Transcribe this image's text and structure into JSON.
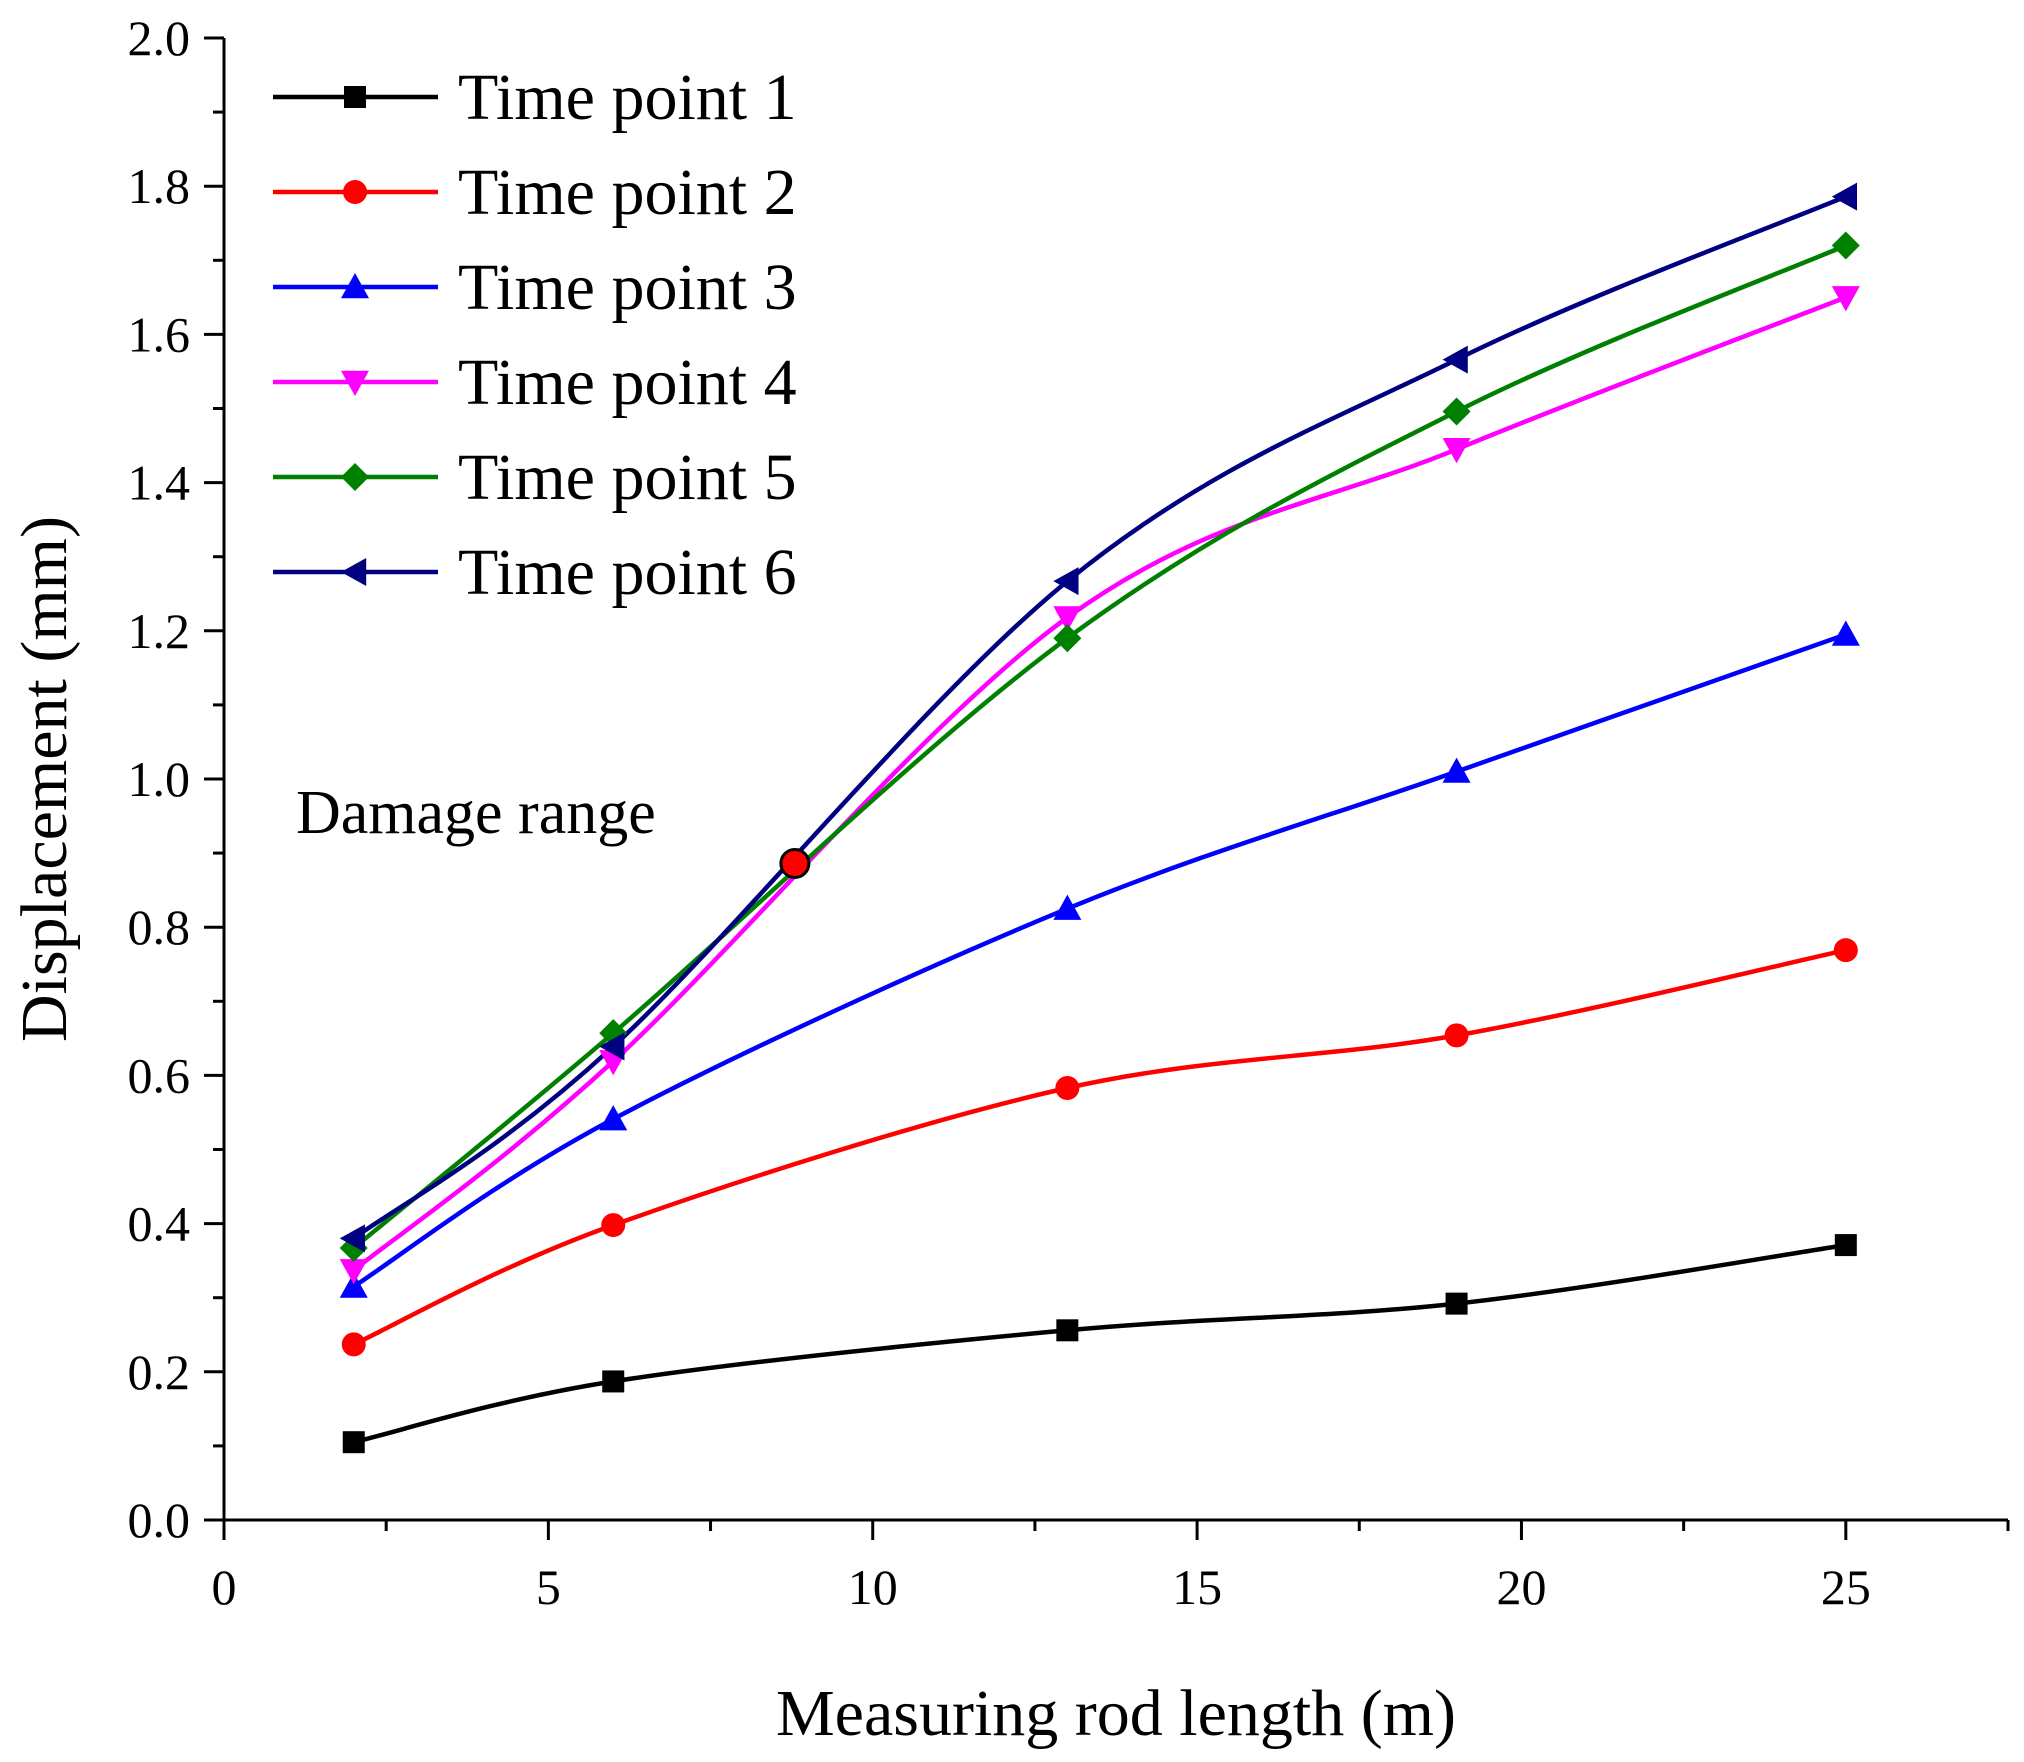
{
  "chart_data": {
    "type": "line",
    "title": "",
    "xlabel": "Measuring rod length (m)",
    "ylabel": "Displacement (mm)",
    "xlim": [
      0,
      27.5
    ],
    "ylim": [
      0,
      2.0
    ],
    "xticks": [
      0,
      5,
      10,
      15,
      20,
      25
    ],
    "xtick_labels": [
      "0",
      "5",
      "10",
      "15",
      "20",
      "25"
    ],
    "yticks": [
      0.0,
      0.2,
      0.4,
      0.6,
      0.8,
      1.0,
      1.2,
      1.4,
      1.6,
      1.8,
      2.0
    ],
    "ytick_labels": [
      "0.0",
      "0.2",
      "0.4",
      "0.6",
      "0.8",
      "1.0",
      "1.2",
      "1.4",
      "1.6",
      "1.8",
      "2.0"
    ],
    "grid": false,
    "legend_position": "top-left",
    "x": [
      2,
      6,
      13,
      19,
      25
    ],
    "series": [
      {
        "name": "Time point 1",
        "color": "#000000",
        "marker": "square",
        "values": [
          0.105,
          0.187,
          0.256,
          0.292,
          0.371
        ]
      },
      {
        "name": "Time point 2",
        "color": "#ff0000",
        "marker": "circle",
        "values": [
          0.237,
          0.398,
          0.583,
          0.654,
          0.769
        ]
      },
      {
        "name": "Time point 3",
        "color": "#0000ff",
        "marker": "triangle-up",
        "values": [
          0.315,
          0.541,
          0.825,
          1.01,
          1.195
        ]
      },
      {
        "name": "Time point 4",
        "color": "#ff00ff",
        "marker": "triangle-down",
        "values": [
          0.337,
          0.619,
          1.218,
          1.445,
          1.65
        ]
      },
      {
        "name": "Time point 5",
        "color": "#008000",
        "marker": "diamond",
        "values": [
          0.367,
          0.657,
          1.19,
          1.496,
          1.72
        ]
      },
      {
        "name": "Time point 6",
        "color": "#000080",
        "marker": "triangle-left",
        "values": [
          0.38,
          0.639,
          1.267,
          1.566,
          1.786
        ]
      }
    ],
    "annotations": [
      {
        "text": "Damage range",
        "point": {
          "x": 8.8,
          "y": 0.886,
          "color": "#ff0000"
        }
      }
    ]
  }
}
